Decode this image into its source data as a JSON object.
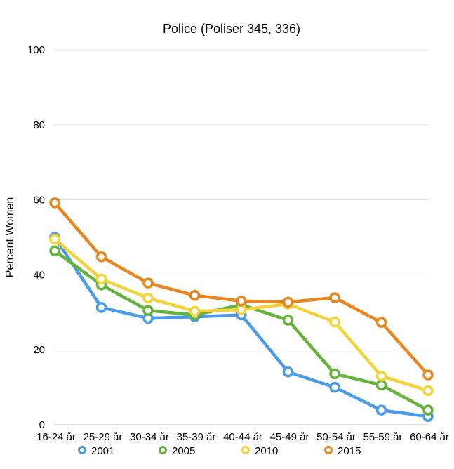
{
  "chart_data": {
    "type": "line",
    "title": "Police (Poliser 345, 336)",
    "xlabel": "",
    "ylabel": "Percent Women",
    "ylim": [
      0,
      100
    ],
    "yticks": [
      0,
      20,
      40,
      60,
      80,
      100
    ],
    "grid": true,
    "legend_position": "bottom",
    "categories": [
      "16-24 år",
      "25-29 år",
      "30-34 år",
      "35-39 år",
      "40-44 år",
      "45-49 år",
      "50-54 år",
      "55-59 år",
      "60-64 år"
    ],
    "series": [
      {
        "name": "2001",
        "color": "#4a9bea",
        "values": [
          50,
          31.3,
          28.4,
          28.8,
          29.3,
          14.1,
          10.0,
          3.9,
          2.2
        ]
      },
      {
        "name": "2005",
        "color": "#65b33a",
        "values": [
          46.4,
          37.3,
          30.5,
          29.3,
          32.0,
          27.9,
          13.6,
          10.6,
          3.9
        ]
      },
      {
        "name": "2010",
        "color": "#f4d33a",
        "values": [
          49.5,
          38.9,
          33.8,
          30.3,
          30.7,
          32.2,
          27.4,
          13.0,
          9.1
        ]
      },
      {
        "name": "2015",
        "color": "#e8861f",
        "values": [
          59.2,
          44.8,
          37.8,
          34.5,
          33.0,
          32.7,
          33.9,
          27.3,
          13.3
        ]
      }
    ]
  }
}
